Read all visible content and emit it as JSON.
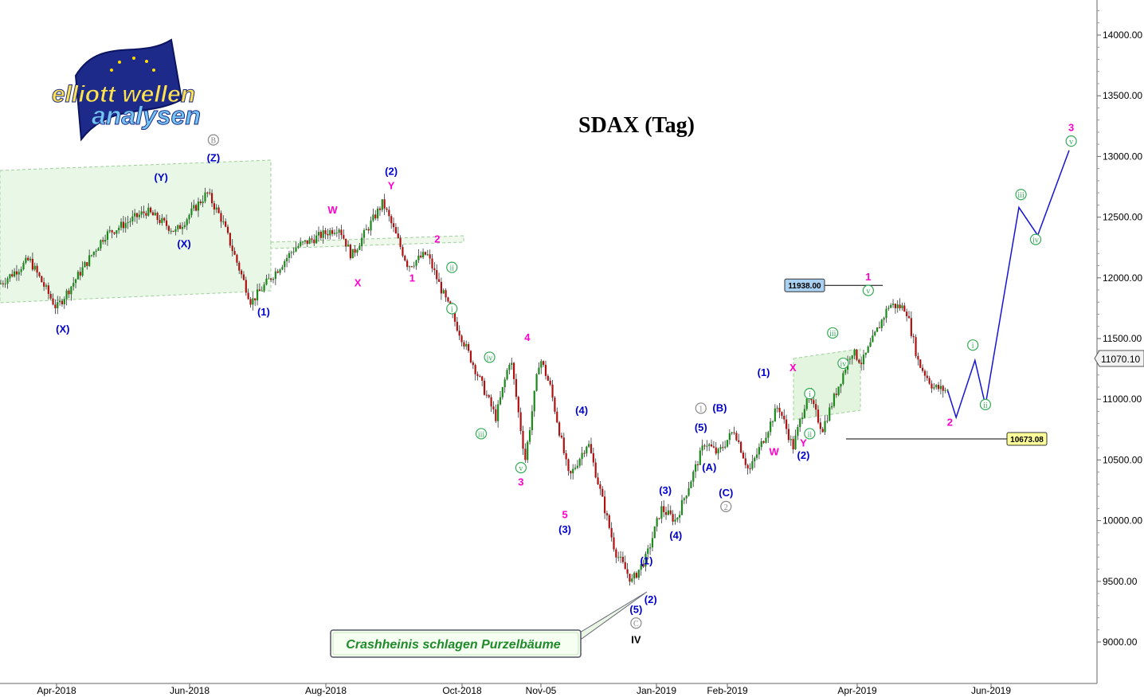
{
  "chart_data": {
    "type": "candlestick",
    "title": "SDAX (Tag)",
    "xlabel": "",
    "ylabel": "",
    "ylim": [
      8700,
      14250
    ],
    "y_ticks": [
      9000,
      9500,
      10000,
      10500,
      11000,
      11500,
      12000,
      12500,
      13000,
      13500,
      14000
    ],
    "y_tick_labels": [
      "9000.00",
      "9500.00",
      "10000.00",
      "10500.00",
      "11000.00",
      "11500.00",
      "12000.00",
      "12500.00",
      "13000.00",
      "13500.00",
      "14000.00"
    ],
    "x_labels": [
      "Apr-2018",
      "Jun-2018",
      "Aug-2018",
      "Oct-2018",
      "Nov-05",
      "Jan-2019",
      "Feb-2019",
      "Apr-2019",
      "Jun-2019"
    ],
    "price_path": [
      {
        "x": "2018-03-01",
        "y": 11950
      },
      {
        "x": "2018-03-15",
        "y": 12150
      },
      {
        "x": "2018-03-28",
        "y": 11750
      },
      {
        "x": "2018-04-20",
        "y": 12350
      },
      {
        "x": "2018-05-10",
        "y": 12550
      },
      {
        "x": "2018-05-24",
        "y": 12380
      },
      {
        "x": "2018-06-08",
        "y": 12700
      },
      {
        "x": "2018-06-15",
        "y": 12480
      },
      {
        "x": "2018-06-29",
        "y": 11800
      },
      {
        "x": "2018-07-20",
        "y": 12250
      },
      {
        "x": "2018-08-10",
        "y": 12420
      },
      {
        "x": "2018-08-16",
        "y": 12180
      },
      {
        "x": "2018-08-31",
        "y": 12620
      },
      {
        "x": "2018-09-12",
        "y": 12100
      },
      {
        "x": "2018-09-21",
        "y": 12200
      },
      {
        "x": "2018-09-28",
        "y": 11900
      },
      {
        "x": "2018-10-24",
        "y": 10850
      },
      {
        "x": "2018-10-31",
        "y": 11350
      },
      {
        "x": "2018-11-07",
        "y": 10500
      },
      {
        "x": "2018-11-14",
        "y": 11350
      },
      {
        "x": "2018-11-19",
        "y": 11100
      },
      {
        "x": "2018-11-28",
        "y": 10350
      },
      {
        "x": "2018-12-07",
        "y": 10650
      },
      {
        "x": "2018-12-20",
        "y": 9750
      },
      {
        "x": "2018-12-28",
        "y": 9500
      },
      {
        "x": "2019-01-04",
        "y": 9700
      },
      {
        "x": "2019-01-11",
        "y": 10100
      },
      {
        "x": "2019-01-18",
        "y": 10000
      },
      {
        "x": "2019-02-01",
        "y": 10650
      },
      {
        "x": "2019-02-07",
        "y": 10550
      },
      {
        "x": "2019-02-15",
        "y": 10750
      },
      {
        "x": "2019-02-22",
        "y": 10400
      },
      {
        "x": "2019-03-08",
        "y": 10950
      },
      {
        "x": "2019-03-15",
        "y": 10600
      },
      {
        "x": "2019-03-22",
        "y": 11050
      },
      {
        "x": "2019-03-29",
        "y": 10750
      },
      {
        "x": "2019-04-12",
        "y": 11400
      },
      {
        "x": "2019-04-17",
        "y": 11300
      },
      {
        "x": "2019-04-30",
        "y": 11780
      },
      {
        "x": "2019-05-08",
        "y": 11750
      },
      {
        "x": "2019-05-14",
        "y": 11300
      },
      {
        "x": "2019-05-21",
        "y": 11100
      },
      {
        "x": "2019-05-28",
        "y": 11070
      }
    ],
    "last_price": "11070.10",
    "price_tags": [
      {
        "label": "11938.00",
        "y": 11938,
        "color": "#a8d0f0"
      },
      {
        "label": "10673.08",
        "y": 10673,
        "color": "#ffff99"
      }
    ],
    "projection": [
      {
        "x": "2019-06-01",
        "y": 10850
      },
      {
        "x": "2019-06-10",
        "y": 11320
      },
      {
        "x": "2019-06-15",
        "y": 10950
      },
      {
        "x": "2019-07-01",
        "y": 12580
      },
      {
        "x": "2019-07-10",
        "y": 12350
      },
      {
        "x": "2019-07-25",
        "y": 13050
      }
    ],
    "wave_labels": [
      {
        "text": "(X)",
        "x": "2018-03-31",
        "y": 11550,
        "color": "#0000cc"
      },
      {
        "text": "(Y)",
        "x": "2018-05-17",
        "y": 12800,
        "color": "#0000cc"
      },
      {
        "text": "(X)",
        "x": "2018-05-28",
        "y": 12250,
        "color": "#0000cc"
      },
      {
        "text": "(Z)",
        "x": "2018-06-11",
        "y": 12960,
        "color": "#0000cc"
      },
      {
        "text": "B",
        "x": "2018-06-11",
        "y": 13110,
        "color": "#888888",
        "circled": true
      },
      {
        "text": "(1)",
        "x": "2018-07-05",
        "y": 11690,
        "color": "#0000cc"
      },
      {
        "text": "W",
        "x": "2018-08-07",
        "y": 12530,
        "color": "#ff00cc"
      },
      {
        "text": "X",
        "x": "2018-08-19",
        "y": 11930,
        "color": "#ff00cc"
      },
      {
        "text": "(2)",
        "x": "2018-09-04",
        "y": 12850,
        "color": "#0000cc"
      },
      {
        "text": "Y",
        "x": "2018-09-04",
        "y": 12730,
        "color": "#ff00cc"
      },
      {
        "text": "1",
        "x": "2018-09-14",
        "y": 11970,
        "color": "#ff00cc"
      },
      {
        "text": "2",
        "x": "2018-09-26",
        "y": 12290,
        "color": "#ff00cc"
      },
      {
        "text": "ii",
        "x": "2018-10-03",
        "y": 12060,
        "color": "#33aa55",
        "circled": true
      },
      {
        "text": "i",
        "x": "2018-10-03",
        "y": 11720,
        "color": "#33aa55",
        "circled": true
      },
      {
        "text": "iii",
        "x": "2018-10-17",
        "y": 10690,
        "color": "#33aa55",
        "circled": true
      },
      {
        "text": "iv",
        "x": "2018-10-21",
        "y": 11320,
        "color": "#33aa55",
        "circled": true
      },
      {
        "text": "v",
        "x": "2018-11-05",
        "y": 10410,
        "color": "#33aa55",
        "circled": true
      },
      {
        "text": "3",
        "x": "2018-11-05",
        "y": 10290,
        "color": "#ff00cc"
      },
      {
        "text": "4",
        "x": "2018-11-08",
        "y": 11480,
        "color": "#ff00cc"
      },
      {
        "text": "5",
        "x": "2018-11-26",
        "y": 10020,
        "color": "#ff00cc"
      },
      {
        "text": "(3)",
        "x": "2018-11-26",
        "y": 9900,
        "color": "#0000cc"
      },
      {
        "text": "(4)",
        "x": "2018-12-04",
        "y": 10880,
        "color": "#0000cc"
      },
      {
        "text": "(1)",
        "x": "2019-01-04",
        "y": 9640,
        "color": "#0000cc"
      },
      {
        "text": "(2)",
        "x": "2019-01-06",
        "y": 9320,
        "color": "#0000cc"
      },
      {
        "text": "(5)",
        "x": "2018-12-30",
        "y": 9240,
        "color": "#0000cc"
      },
      {
        "text": "C",
        "x": "2018-12-30",
        "y": 9130,
        "color": "#888888",
        "circled": true
      },
      {
        "text": "IV",
        "x": "2018-12-30",
        "y": 8990,
        "color": "#000000",
        "big": true
      },
      {
        "text": "(3)",
        "x": "2019-01-13",
        "y": 10220,
        "color": "#0000cc"
      },
      {
        "text": "(4)",
        "x": "2019-01-18",
        "y": 9850,
        "color": "#0000cc"
      },
      {
        "text": "1",
        "x": "2019-01-30",
        "y": 10900,
        "color": "#888888",
        "circled": true
      },
      {
        "text": "(5)",
        "x": "2019-01-30",
        "y": 10740,
        "color": "#0000cc"
      },
      {
        "text": "(A)",
        "x": "2019-02-03",
        "y": 10410,
        "color": "#0000cc"
      },
      {
        "text": "(B)",
        "x": "2019-02-08",
        "y": 10900,
        "color": "#0000cc"
      },
      {
        "text": "(C)",
        "x": "2019-02-11",
        "y": 10200,
        "color": "#0000cc"
      },
      {
        "text": "2",
        "x": "2019-02-11",
        "y": 10090,
        "color": "#888888",
        "circled": true
      },
      {
        "text": "(1)",
        "x": "2019-03-01",
        "y": 11190,
        "color": "#0000cc"
      },
      {
        "text": "W",
        "x": "2019-03-06",
        "y": 10540,
        "color": "#ff00cc"
      },
      {
        "text": "X",
        "x": "2019-03-15",
        "y": 11230,
        "color": "#ff00cc"
      },
      {
        "text": "Y",
        "x": "2019-03-20",
        "y": 10610,
        "color": "#ff00cc"
      },
      {
        "text": "(2)",
        "x": "2019-03-20",
        "y": 10510,
        "color": "#0000cc"
      },
      {
        "text": "i",
        "x": "2019-03-23",
        "y": 11020,
        "color": "#33aa55",
        "circled": true
      },
      {
        "text": "ii",
        "x": "2019-03-23",
        "y": 10690,
        "color": "#33aa55",
        "circled": true
      },
      {
        "text": "iii",
        "x": "2019-04-03",
        "y": 11520,
        "color": "#33aa55",
        "circled": true
      },
      {
        "text": "iv",
        "x": "2019-04-08",
        "y": 11270,
        "color": "#33aa55",
        "circled": true
      },
      {
        "text": "1",
        "x": "2019-04-20",
        "y": 11980,
        "color": "#ff00cc"
      },
      {
        "text": "v",
        "x": "2019-04-20",
        "y": 11870,
        "color": "#33aa55",
        "circled": true
      },
      {
        "text": "2",
        "x": "2019-05-29",
        "y": 10780,
        "color": "#ff00cc"
      },
      {
        "text": "i",
        "x": "2019-06-09",
        "y": 11420,
        "color": "#33aa55",
        "circled": true
      },
      {
        "text": "ii",
        "x": "2019-06-15",
        "y": 10930,
        "color": "#33aa55",
        "circled": true
      },
      {
        "text": "iii",
        "x": "2019-07-02",
        "y": 12660,
        "color": "#33aa55",
        "circled": true
      },
      {
        "text": "iv",
        "x": "2019-07-09",
        "y": 12290,
        "color": "#33aa55",
        "circled": true
      },
      {
        "text": "3",
        "x": "2019-07-26",
        "y": 13210,
        "color": "#ff00cc"
      },
      {
        "text": "v",
        "x": "2019-07-26",
        "y": 13100,
        "color": "#33aa55",
        "circled": true
      }
    ],
    "callout": "Crashheinis schlagen Purzelbäume",
    "grid": false
  },
  "logo": {
    "line1": "elliott wellen",
    "line2": "analysen"
  }
}
